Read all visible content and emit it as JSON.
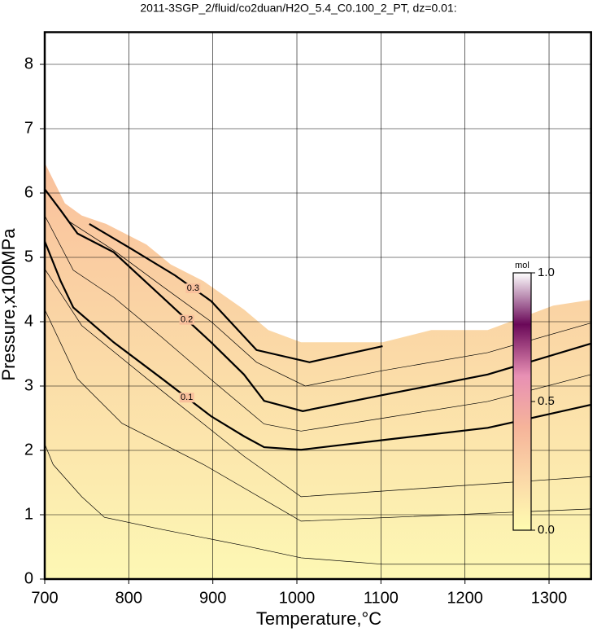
{
  "chart_data": {
    "type": "contour",
    "title": "2011-3SGP_2/fluid/co2duan/H2O_5.4_C0.100_2_PT, dz=0.01:",
    "xlabel": "Temperature,°C",
    "ylabel": "Pressure,x100MPa",
    "xlim": [
      700,
      1350
    ],
    "ylim": [
      0,
      8.5
    ],
    "xticks": [
      700,
      800,
      900,
      1000,
      1100,
      1200,
      1300
    ],
    "yticks": [
      0,
      1,
      2,
      3,
      4,
      5,
      6,
      7,
      8
    ],
    "grid": true,
    "fill_colors": [
      "#fdf8b4",
      "#f9c09c"
    ],
    "boundary": {
      "x": [
        700,
        724,
        744,
        773,
        821,
        850,
        889,
        937,
        966,
        1005,
        1102,
        1160,
        1227,
        1305,
        1350
      ],
      "y": [
        6.47,
        5.84,
        5.65,
        5.52,
        5.2,
        4.89,
        4.63,
        4.19,
        3.87,
        3.68,
        3.68,
        3.87,
        3.87,
        4.25,
        4.34
      ]
    },
    "contours": [
      {
        "level": 0.1,
        "x": [
          700,
          719,
          734,
          782,
          840,
          898,
          937,
          961,
          1005,
          1102,
          1227,
          1350
        ],
        "y": [
          5.25,
          4.63,
          4.22,
          3.68,
          3.11,
          2.53,
          2.22,
          2.05,
          2.01,
          2.16,
          2.35,
          2.71
        ]
      },
      {
        "level": 0.2,
        "x": [
          700,
          719,
          739,
          782,
          840,
          898,
          937,
          961,
          1007,
          1102,
          1227,
          1350
        ],
        "y": [
          6.06,
          5.73,
          5.37,
          5.08,
          4.38,
          3.68,
          3.18,
          2.77,
          2.61,
          2.86,
          3.18,
          3.66
        ]
      },
      {
        "level": 0.3,
        "x": [
          753,
          802,
          855,
          898,
          952,
          1015,
          1102
        ],
        "y": [
          5.52,
          5.14,
          4.72,
          4.32,
          3.56,
          3.37,
          3.62
        ]
      }
    ],
    "thin_contours": [
      {
        "x": [
          700,
          710,
          744,
          771,
          840,
          937,
          1005,
          1102,
          1350
        ],
        "y": [
          2.1,
          1.78,
          1.28,
          0.96,
          0.77,
          0.52,
          0.33,
          0.23,
          0.23
        ]
      },
      {
        "x": [
          700,
          739,
          792,
          889,
          1005,
          1350
        ],
        "y": [
          4.19,
          3.11,
          2.42,
          1.78,
          0.9,
          1.09
        ]
      },
      {
        "x": [
          700,
          744,
          840,
          937,
          1005,
          1350
        ],
        "y": [
          4.82,
          3.94,
          2.92,
          1.91,
          1.28,
          1.59
        ]
      },
      {
        "x": [
          700,
          734,
          782,
          840,
          898,
          961,
          1005,
          1102,
          1227,
          1350
        ],
        "y": [
          5.65,
          4.8,
          4.38,
          3.75,
          3.1,
          2.41,
          2.3,
          2.5,
          2.76,
          3.18
        ]
      },
      {
        "x": [
          730,
          782,
          840,
          898,
          952,
          1010,
          1102,
          1227,
          1350
        ],
        "y": [
          5.55,
          5.11,
          4.55,
          4.0,
          3.37,
          3.0,
          3.24,
          3.52,
          3.98
        ]
      }
    ],
    "colorbar": {
      "label": "mol",
      "zlim": [
        0,
        1
      ],
      "zticks": [
        {
          "value": 0,
          "label": "0.0"
        },
        0.5,
        {
          "value": 1,
          "label": "1.0"
        }
      ],
      "colors": [
        "#fffcb0",
        "#fbd8a8",
        "#f6b49a",
        "#e890b4",
        "#6a0858",
        "#ffffff"
      ]
    }
  }
}
